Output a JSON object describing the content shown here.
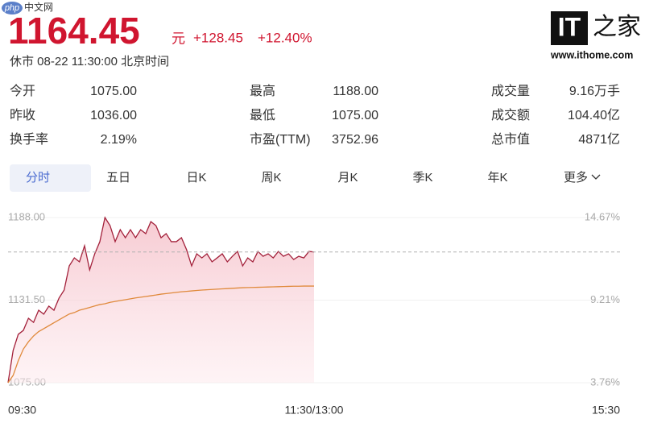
{
  "watermark": {
    "brand": "php",
    "site": "中文网"
  },
  "quote": {
    "price": "1164.45",
    "unit": "元",
    "change": "+128.45",
    "change_pct": "+12.40%",
    "status": "休市 08-22 11:30:00 北京时间"
  },
  "stats": {
    "rows": [
      [
        [
          "今开",
          "1075.00"
        ],
        [
          "最高",
          "1188.00"
        ],
        [
          "成交量",
          "9.16万手"
        ]
      ],
      [
        [
          "昨收",
          "1036.00"
        ],
        [
          "最低",
          "1075.00"
        ],
        [
          "成交额",
          "104.40亿"
        ]
      ],
      [
        [
          "换手率",
          "2.19%"
        ],
        [
          "市盈(TTM)",
          "3752.96"
        ],
        [
          "总市值",
          "4871亿"
        ]
      ]
    ]
  },
  "tabs": [
    "分时",
    "五日",
    "日K",
    "周K",
    "月K",
    "季K",
    "年K",
    "更多"
  ],
  "logo": {
    "mark": "IT",
    "name": "之家",
    "url": "www.ithome.com"
  },
  "chart_data": {
    "type": "line",
    "x": [
      0,
      2,
      4,
      6,
      8,
      10,
      12,
      14,
      16,
      18,
      20,
      22,
      24,
      26,
      28,
      30,
      32,
      34,
      36,
      38,
      40,
      42,
      44,
      46,
      48,
      50,
      52,
      54,
      56,
      58,
      60,
      62,
      64,
      66,
      68,
      70,
      72,
      74,
      76,
      78,
      80,
      82,
      84,
      86,
      88,
      90,
      92,
      94,
      96,
      98,
      100,
      102,
      104,
      106,
      108,
      110,
      112,
      114,
      116,
      118,
      120
    ],
    "series": [
      {
        "name": "price",
        "color": "#a3203a",
        "fill": true,
        "values": [
          1075.0,
          1097.1,
          1108.1,
          1110.8,
          1119.1,
          1116.3,
          1124.6,
          1121.9,
          1127.4,
          1124.6,
          1132.9,
          1138.4,
          1154.9,
          1160.4,
          1157.7,
          1168.7,
          1152.2,
          1163.2,
          1171.5,
          1188.0,
          1182.5,
          1171.5,
          1179.7,
          1174.2,
          1179.7,
          1174.2,
          1179.7,
          1177.0,
          1185.2,
          1182.5,
          1174.2,
          1177.0,
          1171.5,
          1171.5,
          1174.2,
          1166.0,
          1154.9,
          1163.2,
          1160.4,
          1163.2,
          1157.7,
          1160.4,
          1163.2,
          1157.7,
          1161.5,
          1164.8,
          1154.9,
          1160.4,
          1157.7,
          1164.8,
          1161.5,
          1163.2,
          1160.4,
          1164.8,
          1161.5,
          1163.2,
          1159.3,
          1161.5,
          1160.4,
          1164.8,
          1164.45
        ]
      },
      {
        "name": "average",
        "color": "#e08a3c",
        "fill": false,
        "values": [
          1075,
          1080,
          1090,
          1098,
          1103,
          1107,
          1110,
          1112,
          1114,
          1116,
          1118,
          1120,
          1122,
          1123,
          1124.6,
          1125.5,
          1126.5,
          1127.5,
          1128.5,
          1129,
          1130,
          1130.6,
          1131.2,
          1131.8,
          1132.4,
          1133,
          1133.5,
          1134,
          1134.5,
          1135,
          1135.6,
          1136,
          1136.4,
          1136.8,
          1137.2,
          1137.5,
          1137.8,
          1138.1,
          1138.4,
          1138.6,
          1138.8,
          1139,
          1139.2,
          1139.4,
          1139.6,
          1139.8,
          1140,
          1140.1,
          1140.2,
          1140.3,
          1140.4,
          1140.5,
          1140.6,
          1140.7,
          1140.8,
          1140.9,
          1141,
          1141,
          1141.1,
          1141.1,
          1141.1
        ]
      }
    ],
    "xlim": [
      0,
      240
    ],
    "xticks": [
      {
        "value": 0,
        "label": "09:30"
      },
      {
        "value": 120,
        "label": "11:30/13:00"
      },
      {
        "value": 240,
        "label": "15:30"
      }
    ],
    "ylim": [
      1075,
      1188
    ],
    "yticks": [
      {
        "value": 1075,
        "label": "1075.00"
      },
      {
        "value": 1131.5,
        "label": "1131.50"
      },
      {
        "value": 1188,
        "label": "1188.00"
      }
    ],
    "y2lim": [
      3.76,
      14.67
    ],
    "y2ticks": [
      {
        "value": 3.76,
        "label": "3.76%"
      },
      {
        "value": 9.21,
        "label": "9.21%"
      },
      {
        "value": 14.67,
        "label": "14.67%"
      }
    ],
    "ref_line": 1164.45,
    "grid": true
  }
}
